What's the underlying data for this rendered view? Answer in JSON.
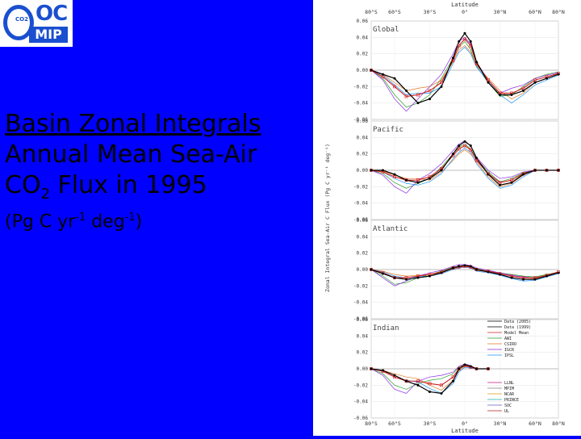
{
  "logo": {
    "co2": "CO2",
    "oc": "OC",
    "mip": "MIP"
  },
  "title": {
    "line1": "Basin Zonal Integrals",
    "line2": "Annual Mean Sea-Air",
    "line3_pre": "CO",
    "line3_sub": "2",
    "line3_post": " Flux in 1995"
  },
  "units": {
    "pre": "(Pg C yr",
    "sup1": "-1",
    "mid": " deg",
    "sup2": "-1",
    "post": ")"
  },
  "chart_data": {
    "type": "line",
    "xlabel": "Latitude",
    "ylabel": "Zonal Integral Sea-Air C Flux (Pg C yr⁻¹ deg⁻¹)",
    "x_ticks": [
      "80°S",
      "60°S",
      "30°S",
      "0°",
      "30°N",
      "60°N",
      "80°N"
    ],
    "x_tick_values": [
      -80,
      -60,
      -30,
      0,
      30,
      60,
      80
    ],
    "xlim": [
      -80,
      80
    ],
    "ylim": [
      -0.06,
      0.06
    ],
    "y_ticks": [
      "0.06",
      "0.04",
      "0.02",
      "0.00",
      "-0.02",
      "-0.04",
      "-0.06"
    ],
    "y_tick_values": [
      0.06,
      0.04,
      0.02,
      0.0,
      -0.02,
      -0.04,
      -0.06
    ],
    "legend": {
      "placement": "right",
      "group1": [
        "Data (2005)",
        "Data (1999)",
        "Model Mean",
        "AWI",
        "CSIRO",
        "IGCR",
        "IPSL"
      ],
      "group2": [
        "LLNL",
        "MPIM",
        "NCAR",
        "PRINCE",
        "SOC",
        "UL"
      ]
    },
    "colors": {
      "data": "#000000",
      "model_mean": "#d02020",
      "models": [
        "#2a9d2a",
        "#e07a20",
        "#8a2be2",
        "#1e90ff",
        "#c71585",
        "#808080",
        "#d4a017",
        "#20b2aa",
        "#6a5acd",
        "#b22222"
      ]
    },
    "panels": [
      {
        "name": "Global",
        "x": [
          -80,
          -70,
          -60,
          -50,
          -40,
          -30,
          -20,
          -10,
          -5,
          0,
          5,
          10,
          20,
          30,
          40,
          50,
          60,
          70,
          80
        ],
        "data": [
          0.0,
          -0.005,
          -0.01,
          -0.025,
          -0.04,
          -0.035,
          -0.02,
          0.015,
          0.035,
          0.045,
          0.035,
          0.01,
          -0.015,
          -0.03,
          -0.03,
          -0.025,
          -0.015,
          -0.01,
          -0.005
        ],
        "model_mean": [
          0.0,
          -0.008,
          -0.02,
          -0.032,
          -0.03,
          -0.025,
          -0.015,
          0.012,
          0.03,
          0.038,
          0.03,
          0.008,
          -0.012,
          -0.028,
          -0.028,
          -0.022,
          -0.012,
          -0.008,
          -0.004
        ],
        "models": [
          [
            0.0,
            -0.01,
            -0.03,
            -0.045,
            -0.04,
            -0.03,
            -0.01,
            0.015,
            0.028,
            0.035,
            0.025,
            0.005,
            -0.015,
            -0.032,
            -0.03,
            -0.02,
            -0.01,
            -0.005,
            -0.002
          ],
          [
            0.0,
            -0.005,
            -0.015,
            -0.025,
            -0.022,
            -0.02,
            -0.012,
            0.01,
            0.025,
            0.03,
            0.022,
            0.006,
            -0.01,
            -0.025,
            -0.035,
            -0.028,
            -0.015,
            -0.01,
            -0.005
          ],
          [
            0.0,
            -0.012,
            -0.035,
            -0.05,
            -0.035,
            -0.02,
            -0.005,
            0.02,
            0.035,
            0.04,
            0.032,
            0.01,
            -0.012,
            -0.028,
            -0.022,
            -0.018,
            -0.01,
            -0.006,
            -0.003
          ],
          [
            0.0,
            -0.006,
            -0.018,
            -0.03,
            -0.028,
            -0.028,
            -0.02,
            0.008,
            0.022,
            0.028,
            0.02,
            0.004,
            -0.014,
            -0.03,
            -0.04,
            -0.03,
            -0.018,
            -0.012,
            -0.006
          ]
        ]
      },
      {
        "name": "Pacific",
        "x": [
          -80,
          -70,
          -60,
          -50,
          -40,
          -30,
          -20,
          -10,
          -5,
          0,
          5,
          10,
          20,
          30,
          40,
          50,
          60,
          70,
          80
        ],
        "data": [
          0.0,
          0.0,
          -0.005,
          -0.012,
          -0.015,
          -0.01,
          0.0,
          0.02,
          0.03,
          0.035,
          0.03,
          0.015,
          -0.005,
          -0.018,
          -0.015,
          -0.005,
          0.0,
          0.0,
          0.0
        ],
        "model_mean": [
          0.0,
          -0.002,
          -0.008,
          -0.012,
          -0.012,
          -0.008,
          0.002,
          0.018,
          0.026,
          0.03,
          0.025,
          0.012,
          -0.004,
          -0.015,
          -0.012,
          -0.004,
          0.0,
          0.0,
          0.0
        ],
        "models": [
          [
            0.0,
            -0.004,
            -0.015,
            -0.022,
            -0.016,
            -0.01,
            0.004,
            0.02,
            0.028,
            0.032,
            0.026,
            0.014,
            -0.002,
            -0.014,
            -0.01,
            -0.003,
            0.0,
            0.0,
            0.0
          ],
          [
            0.0,
            -0.001,
            -0.006,
            -0.01,
            -0.01,
            -0.012,
            -0.002,
            0.012,
            0.02,
            0.025,
            0.02,
            0.01,
            -0.008,
            -0.02,
            -0.016,
            -0.006,
            0.0,
            0.0,
            0.0
          ],
          [
            0.0,
            -0.006,
            -0.02,
            -0.028,
            -0.012,
            -0.004,
            0.008,
            0.024,
            0.032,
            0.036,
            0.03,
            0.016,
            0.0,
            -0.01,
            -0.008,
            -0.002,
            0.0,
            0.0,
            0.0
          ],
          [
            0.0,
            -0.002,
            -0.01,
            -0.016,
            -0.018,
            -0.014,
            -0.004,
            0.014,
            0.022,
            0.027,
            0.022,
            0.008,
            -0.01,
            -0.022,
            -0.018,
            -0.008,
            0.0,
            0.0,
            0.0
          ]
        ]
      },
      {
        "name": "Atlantic",
        "x": [
          -80,
          -70,
          -60,
          -50,
          -40,
          -30,
          -20,
          -10,
          -5,
          0,
          5,
          10,
          20,
          30,
          40,
          50,
          60,
          70,
          80
        ],
        "data": [
          0.0,
          -0.005,
          -0.01,
          -0.012,
          -0.01,
          -0.008,
          -0.004,
          0.002,
          0.004,
          0.005,
          0.004,
          0.0,
          -0.003,
          -0.006,
          -0.01,
          -0.012,
          -0.012,
          -0.008,
          -0.004
        ],
        "model_mean": [
          0.0,
          -0.004,
          -0.01,
          -0.01,
          -0.008,
          -0.006,
          -0.003,
          0.002,
          0.003,
          0.004,
          0.003,
          0.0,
          -0.002,
          -0.005,
          -0.008,
          -0.01,
          -0.01,
          -0.007,
          -0.003
        ],
        "models": [
          [
            0.0,
            -0.008,
            -0.018,
            -0.016,
            -0.01,
            -0.006,
            -0.002,
            0.003,
            0.004,
            0.005,
            0.004,
            0.001,
            -0.002,
            -0.004,
            -0.006,
            -0.008,
            -0.009,
            -0.006,
            -0.003
          ],
          [
            0.0,
            -0.002,
            -0.006,
            -0.008,
            -0.007,
            -0.006,
            -0.004,
            0.001,
            0.002,
            0.003,
            0.002,
            -0.001,
            -0.003,
            -0.006,
            -0.01,
            -0.012,
            -0.011,
            -0.008,
            -0.004
          ],
          [
            0.0,
            -0.01,
            -0.02,
            -0.014,
            -0.008,
            -0.004,
            -0.001,
            0.004,
            0.006,
            0.006,
            0.005,
            0.002,
            -0.001,
            -0.004,
            -0.007,
            -0.009,
            -0.01,
            -0.007,
            -0.003
          ],
          [
            0.0,
            -0.003,
            -0.008,
            -0.01,
            -0.009,
            -0.008,
            -0.005,
            0.0,
            0.002,
            0.003,
            0.002,
            -0.002,
            -0.004,
            -0.007,
            -0.011,
            -0.014,
            -0.013,
            -0.009,
            -0.005
          ]
        ]
      },
      {
        "name": "Indian",
        "x": [
          -80,
          -70,
          -60,
          -50,
          -40,
          -30,
          -20,
          -10,
          -5,
          0,
          5,
          10,
          20
        ],
        "data": [
          0.0,
          -0.002,
          -0.008,
          -0.015,
          -0.02,
          -0.028,
          -0.03,
          -0.015,
          0.0,
          0.005,
          0.003,
          0.0,
          0.0
        ],
        "model_mean": [
          0.0,
          -0.003,
          -0.01,
          -0.015,
          -0.015,
          -0.018,
          -0.02,
          -0.01,
          0.0,
          0.004,
          0.002,
          0.0,
          0.0
        ],
        "models": [
          [
            0.0,
            -0.006,
            -0.02,
            -0.025,
            -0.018,
            -0.014,
            -0.012,
            -0.006,
            0.002,
            0.005,
            0.003,
            0.0,
            0.0
          ],
          [
            0.0,
            -0.002,
            -0.006,
            -0.01,
            -0.012,
            -0.02,
            -0.026,
            -0.014,
            -0.002,
            0.003,
            0.002,
            0.0,
            0.0
          ],
          [
            0.0,
            -0.008,
            -0.025,
            -0.03,
            -0.015,
            -0.01,
            -0.008,
            -0.004,
            0.003,
            0.006,
            0.004,
            0.0,
            0.0
          ],
          [
            0.0,
            -0.003,
            -0.01,
            -0.014,
            -0.016,
            -0.024,
            -0.03,
            -0.018,
            -0.004,
            0.002,
            0.001,
            0.0,
            0.0
          ]
        ]
      }
    ]
  }
}
